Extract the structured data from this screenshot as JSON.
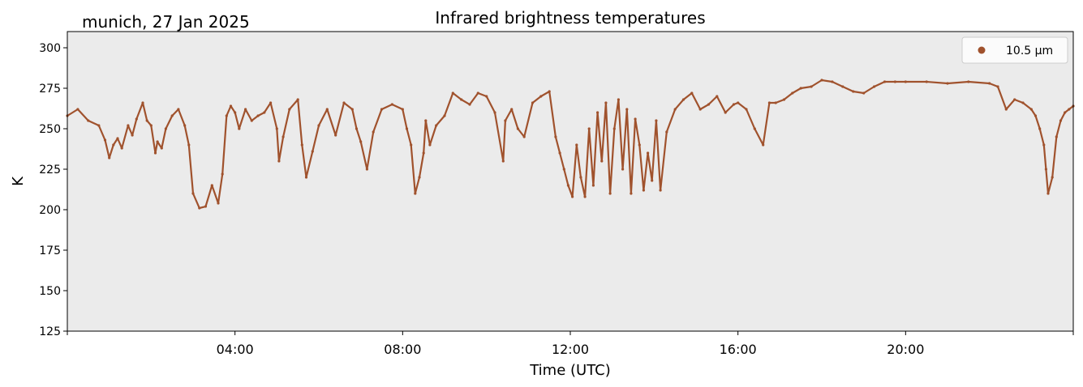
{
  "chart_data": {
    "type": "scatter",
    "title": "Infrared brightness temperatures",
    "subtitle": "munich, 27 Jan 2025",
    "xlabel": "Time (UTC)",
    "ylabel": "K",
    "xlim": [
      0,
      24
    ],
    "ylim": [
      125,
      310
    ],
    "xticks": [
      4,
      8,
      12,
      16,
      20
    ],
    "xtick_labels": [
      "04:00",
      "08:00",
      "12:00",
      "16:00",
      "20:00"
    ],
    "yticks": [
      125,
      150,
      175,
      200,
      225,
      250,
      275,
      300
    ],
    "ytick_labels": [
      "125",
      "150",
      "175",
      "200",
      "225",
      "250",
      "275",
      "300"
    ],
    "grid": false,
    "legend_position": "top-right",
    "colors": {
      "series": "#a0522d",
      "plot_bg": "#ebebeb"
    },
    "series": [
      {
        "name": "10.5 µm",
        "x": [
          0.0,
          0.25,
          0.5,
          0.75,
          0.9,
          1.0,
          1.1,
          1.2,
          1.3,
          1.45,
          1.55,
          1.65,
          1.8,
          1.9,
          2.0,
          2.1,
          2.15,
          2.25,
          2.35,
          2.5,
          2.65,
          2.8,
          2.9,
          3.0,
          3.15,
          3.3,
          3.45,
          3.6,
          3.7,
          3.8,
          3.9,
          4.0,
          4.1,
          4.25,
          4.4,
          4.55,
          4.7,
          4.85,
          5.0,
          5.05,
          5.15,
          5.3,
          5.5,
          5.6,
          5.7,
          5.85,
          6.0,
          6.2,
          6.4,
          6.6,
          6.8,
          6.9,
          7.0,
          7.15,
          7.3,
          7.5,
          7.75,
          8.0,
          8.1,
          8.2,
          8.3,
          8.4,
          8.5,
          8.55,
          8.65,
          8.8,
          9.0,
          9.2,
          9.4,
          9.6,
          9.8,
          10.0,
          10.2,
          10.4,
          10.45,
          10.6,
          10.75,
          10.9,
          11.1,
          11.3,
          11.5,
          11.65,
          11.75,
          11.85,
          11.95,
          12.05,
          12.15,
          12.25,
          12.35,
          12.45,
          12.55,
          12.65,
          12.75,
          12.85,
          12.95,
          13.05,
          13.15,
          13.25,
          13.35,
          13.45,
          13.55,
          13.65,
          13.75,
          13.85,
          13.95,
          14.05,
          14.15,
          14.3,
          14.5,
          14.7,
          14.9,
          15.1,
          15.3,
          15.5,
          15.7,
          15.9,
          16.0,
          16.2,
          16.4,
          16.6,
          16.75,
          16.9,
          17.1,
          17.3,
          17.5,
          17.75,
          18.0,
          18.25,
          18.5,
          18.75,
          19.0,
          19.25,
          19.5,
          19.75,
          20.0,
          20.5,
          21.0,
          21.5,
          22.0,
          22.2,
          22.4,
          22.6,
          22.8,
          23.0,
          23.1,
          23.2,
          23.3,
          23.35,
          23.4,
          23.5,
          23.6,
          23.7,
          23.8,
          23.9,
          24.0
        ],
        "values": [
          258,
          262,
          255,
          252,
          243,
          232,
          240,
          244,
          238,
          252,
          246,
          256,
          266,
          255,
          252,
          235,
          242,
          238,
          250,
          258,
          262,
          252,
          240,
          210,
          201,
          202,
          215,
          204,
          222,
          258,
          264,
          260,
          250,
          262,
          255,
          258,
          260,
          266,
          250,
          230,
          245,
          262,
          268,
          240,
          220,
          236,
          252,
          262,
          246,
          266,
          262,
          250,
          242,
          225,
          248,
          262,
          265,
          262,
          250,
          240,
          210,
          220,
          235,
          255,
          240,
          252,
          258,
          272,
          268,
          265,
          272,
          270,
          260,
          230,
          255,
          262,
          250,
          245,
          266,
          270,
          273,
          245,
          235,
          225,
          215,
          208,
          240,
          220,
          208,
          250,
          215,
          260,
          230,
          266,
          210,
          250,
          268,
          225,
          262,
          210,
          256,
          240,
          212,
          235,
          218,
          255,
          212,
          248,
          262,
          268,
          272,
          262,
          265,
          270,
          260,
          265,
          266,
          262,
          250,
          240,
          266,
          266,
          268,
          272,
          275,
          276,
          280,
          279,
          276,
          273,
          272,
          276,
          279,
          279,
          279,
          279,
          278,
          279,
          278,
          276,
          262,
          268,
          266,
          262,
          258,
          250,
          240,
          225,
          210,
          220,
          245,
          255,
          260,
          262,
          264
        ]
      }
    ]
  }
}
